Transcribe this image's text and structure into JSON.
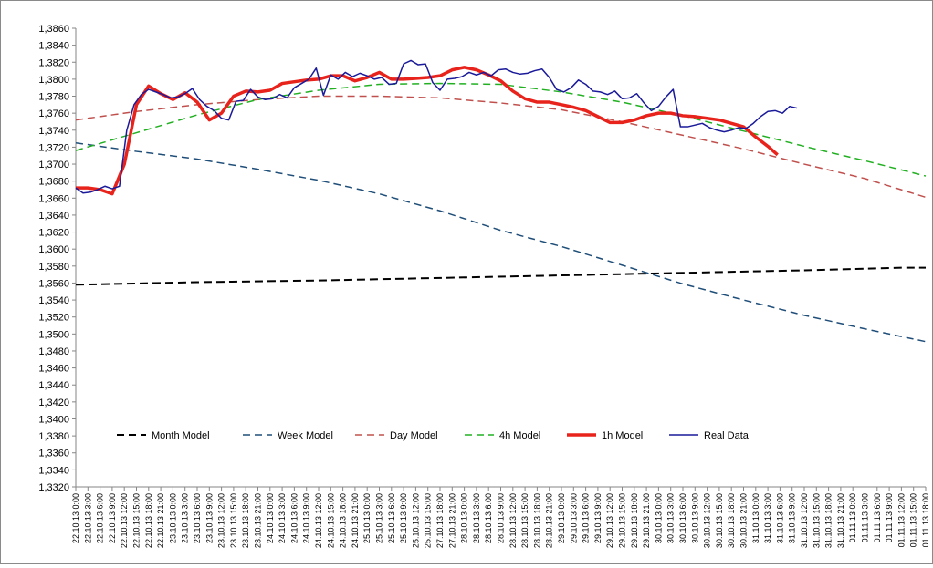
{
  "chart_data": {
    "type": "line",
    "title": "",
    "xlabel": "",
    "ylabel": "",
    "ylim": [
      1.332,
      1.386
    ],
    "y_step": 0.002,
    "y_tick_labels": [
      "1,3320",
      "1,3340",
      "1,3360",
      "1,3380",
      "1,3400",
      "1,3420",
      "1,3440",
      "1,3460",
      "1,3480",
      "1,3500",
      "1,3520",
      "1,3540",
      "1,3560",
      "1,3580",
      "1,3600",
      "1,3620",
      "1,3640",
      "1,3660",
      "1,3680",
      "1,3700",
      "1,3720",
      "1,3740",
      "1,3760",
      "1,3780",
      "1,3800",
      "1,3820",
      "1,3840",
      "1,3860"
    ],
    "x_categories": [
      "22.10.13 0:00",
      "22.10.13 3:00",
      "22.10.13 6:00",
      "22.10.13 9:00",
      "22.10.13 12:00",
      "22.10.13 15:00",
      "22.10.13 18:00",
      "22.10.13 21:00",
      "23.10.13 0:00",
      "23.10.13 3:00",
      "23.10.13 6:00",
      "23.10.13 9:00",
      "23.10.13 12:00",
      "23.10.13 15:00",
      "23.10.13 18:00",
      "23.10.13 21:00",
      "24.10.13 0:00",
      "24.10.13 3:00",
      "24.10.13 6:00",
      "24.10.13 9:00",
      "24.10.13 12:00",
      "24.10.13 15:00",
      "24.10.13 18:00",
      "24.10.13 21:00",
      "25.10.13 0:00",
      "25.10.13 3:00",
      "25.10.13 6:00",
      "25.10.13 9:00",
      "25.10.13 12:00",
      "25.10.13 15:00",
      "27.10.13 18:00",
      "27.10.13 21:00",
      "28.10.13 0:00",
      "28.10.13 3:00",
      "28.10.13 6:00",
      "28.10.13 9:00",
      "28.10.13 12:00",
      "28.10.13 15:00",
      "28.10.13 18:00",
      "28.10.13 21:00",
      "29.10.13 0:00",
      "29.10.13 3:00",
      "29.10.13 6:00",
      "29.10.13 9:00",
      "29.10.13 12:00",
      "29.10.13 15:00",
      "29.10.13 18:00",
      "29.10.13 21:00",
      "30.10.13 0:00",
      "30.10.13 3:00",
      "30.10.13 6:00",
      "30.10.13 9:00",
      "30.10.13 12:00",
      "30.10.13 15:00",
      "30.10.13 18:00",
      "30.10.13 21:00",
      "31.10.13 0:00",
      "31.10.13 3:00",
      "31.10.13 6:00",
      "31.10.13 9:00",
      "31.10.13 12:00",
      "31.10.13 15:00",
      "31.10.13 18:00",
      "31.10.13 21:00",
      "01.11.13 0:00",
      "01.11.13 3:00",
      "01.11.13 6:00",
      "01.11.13 9:00",
      "01.11.13 12:00",
      "01.11.13 15:00",
      "01.11.13 18:00"
    ],
    "series": [
      {
        "name": "Month Model",
        "color": "#000000",
        "style": "dash",
        "width": 2,
        "values": [
          [
            0,
            1.3558
          ],
          [
            10,
            1.3561
          ],
          [
            20,
            1.3563
          ],
          [
            30,
            1.3566
          ],
          [
            40,
            1.3569
          ],
          [
            50,
            1.3572
          ],
          [
            60,
            1.3575
          ],
          [
            68,
            1.3578
          ],
          [
            70,
            1.3578
          ]
        ]
      },
      {
        "name": "Week Model",
        "color": "#1f4e79",
        "style": "dash",
        "width": 1.5,
        "values": [
          [
            0,
            1.3725
          ],
          [
            5,
            1.3715
          ],
          [
            10,
            1.3706
          ],
          [
            15,
            1.3694
          ],
          [
            20,
            1.3681
          ],
          [
            25,
            1.3665
          ],
          [
            30,
            1.3645
          ],
          [
            35,
            1.3622
          ],
          [
            40,
            1.3603
          ],
          [
            45,
            1.3581
          ],
          [
            50,
            1.3559
          ],
          [
            55,
            1.354
          ],
          [
            60,
            1.3522
          ],
          [
            65,
            1.3506
          ],
          [
            70,
            1.3491
          ]
        ]
      },
      {
        "name": "Day Model",
        "color": "#c0504d",
        "style": "dash",
        "width": 1.5,
        "values": [
          [
            0,
            1.3752
          ],
          [
            5,
            1.3762
          ],
          [
            10,
            1.377
          ],
          [
            15,
            1.3776
          ],
          [
            20,
            1.378
          ],
          [
            25,
            1.378
          ],
          [
            30,
            1.3778
          ],
          [
            35,
            1.3772
          ],
          [
            40,
            1.3764
          ],
          [
            45,
            1.375
          ],
          [
            50,
            1.3734
          ],
          [
            55,
            1.3718
          ],
          [
            60,
            1.37
          ],
          [
            65,
            1.3683
          ],
          [
            70,
            1.3661
          ]
        ]
      },
      {
        "name": "4h Model",
        "color": "#22b022",
        "style": "dash",
        "width": 1.5,
        "values": [
          [
            0,
            1.3716
          ],
          [
            5,
            1.3737
          ],
          [
            10,
            1.3758
          ],
          [
            15,
            1.3776
          ],
          [
            20,
            1.3787
          ],
          [
            25,
            1.3794
          ],
          [
            30,
            1.3795
          ],
          [
            35,
            1.3794
          ],
          [
            40,
            1.3785
          ],
          [
            45,
            1.3773
          ],
          [
            50,
            1.3757
          ],
          [
            55,
            1.3739
          ],
          [
            60,
            1.3721
          ],
          [
            65,
            1.3704
          ],
          [
            70,
            1.3686
          ]
        ]
      },
      {
        "name": "1h Model",
        "color": "#e8231c",
        "style": "solid",
        "width": 3.5,
        "values": [
          [
            0,
            1.3672
          ],
          [
            1,
            1.3672
          ],
          [
            2,
            1.367
          ],
          [
            3,
            1.3665
          ],
          [
            4,
            1.37
          ],
          [
            5,
            1.377
          ],
          [
            6,
            1.3792
          ],
          [
            7,
            1.3783
          ],
          [
            8,
            1.3776
          ],
          [
            9,
            1.3784
          ],
          [
            10,
            1.3773
          ],
          [
            11,
            1.3752
          ],
          [
            12,
            1.376
          ],
          [
            13,
            1.378
          ],
          [
            14,
            1.3786
          ],
          [
            15,
            1.3785
          ],
          [
            16,
            1.3787
          ],
          [
            17,
            1.3795
          ],
          [
            18,
            1.3797
          ],
          [
            19,
            1.3799
          ],
          [
            20,
            1.38
          ],
          [
            21,
            1.3804
          ],
          [
            22,
            1.3804
          ],
          [
            23,
            1.3798
          ],
          [
            24,
            1.3802
          ],
          [
            25,
            1.3808
          ],
          [
            26,
            1.38
          ],
          [
            27,
            1.38
          ],
          [
            28,
            1.3801
          ],
          [
            29,
            1.3802
          ],
          [
            30,
            1.3804
          ],
          [
            31,
            1.3811
          ],
          [
            32,
            1.3814
          ],
          [
            33,
            1.3811
          ],
          [
            34,
            1.3805
          ],
          [
            35,
            1.3798
          ],
          [
            36,
            1.3786
          ],
          [
            37,
            1.3777
          ],
          [
            38,
            1.3773
          ],
          [
            39,
            1.3773
          ],
          [
            40,
            1.377
          ],
          [
            41,
            1.3767
          ],
          [
            42,
            1.3763
          ],
          [
            43,
            1.3756
          ],
          [
            44,
            1.3749
          ],
          [
            45,
            1.3749
          ],
          [
            46,
            1.3752
          ],
          [
            47,
            1.3757
          ],
          [
            48,
            1.376
          ],
          [
            49,
            1.376
          ],
          [
            50,
            1.3757
          ],
          [
            51,
            1.3756
          ],
          [
            52,
            1.3754
          ],
          [
            53,
            1.3752
          ],
          [
            54,
            1.3748
          ],
          [
            55,
            1.3744
          ],
          [
            56,
            1.3732
          ],
          [
            57,
            1.3721
          ],
          [
            57.8,
            1.3711
          ]
        ]
      },
      {
        "name": "Real Data",
        "color": "#1a1a9a",
        "style": "solid",
        "width": 1.5,
        "values": [
          [
            0,
            1.3672
          ],
          [
            0.6,
            1.3666
          ],
          [
            1.2,
            1.3667
          ],
          [
            1.8,
            1.367
          ],
          [
            2.4,
            1.3674
          ],
          [
            3,
            1.3671
          ],
          [
            3.6,
            1.3674
          ],
          [
            4.2,
            1.374
          ],
          [
            4.8,
            1.377
          ],
          [
            5.4,
            1.3782
          ],
          [
            6,
            1.3788
          ],
          [
            6.6,
            1.3785
          ],
          [
            7.2,
            1.3782
          ],
          [
            7.8,
            1.3778
          ],
          [
            8.4,
            1.3779
          ],
          [
            9,
            1.3783
          ],
          [
            9.6,
            1.3789
          ],
          [
            10.2,
            1.3776
          ],
          [
            10.8,
            1.3768
          ],
          [
            11.4,
            1.3763
          ],
          [
            12,
            1.3754
          ],
          [
            12.6,
            1.3752
          ],
          [
            13.2,
            1.3774
          ],
          [
            13.8,
            1.3775
          ],
          [
            14.4,
            1.3788
          ],
          [
            15,
            1.3779
          ],
          [
            15.6,
            1.3776
          ],
          [
            16.2,
            1.3777
          ],
          [
            16.8,
            1.3782
          ],
          [
            17.4,
            1.3778
          ],
          [
            18,
            1.379
          ],
          [
            18.6,
            1.3795
          ],
          [
            19.2,
            1.38
          ],
          [
            19.8,
            1.3813
          ],
          [
            20.4,
            1.3781
          ],
          [
            21,
            1.3805
          ],
          [
            21.6,
            1.38
          ],
          [
            22.2,
            1.3808
          ],
          [
            22.8,
            1.3803
          ],
          [
            23.4,
            1.3807
          ],
          [
            24,
            1.3804
          ],
          [
            24.6,
            1.38
          ],
          [
            25.2,
            1.3802
          ],
          [
            25.8,
            1.3794
          ],
          [
            26.4,
            1.3795
          ],
          [
            27,
            1.3818
          ],
          [
            27.6,
            1.3822
          ],
          [
            28.2,
            1.3817
          ],
          [
            28.8,
            1.3818
          ],
          [
            29.4,
            1.3796
          ],
          [
            30,
            1.3787
          ],
          [
            30.6,
            1.38
          ],
          [
            31.2,
            1.3801
          ],
          [
            31.8,
            1.3803
          ],
          [
            32.4,
            1.3808
          ],
          [
            33,
            1.3805
          ],
          [
            33.6,
            1.3808
          ],
          [
            34.2,
            1.3804
          ],
          [
            34.8,
            1.3811
          ],
          [
            35.4,
            1.3812
          ],
          [
            36,
            1.3808
          ],
          [
            36.6,
            1.3806
          ],
          [
            37.2,
            1.3807
          ],
          [
            37.8,
            1.381
          ],
          [
            38.4,
            1.3812
          ],
          [
            39,
            1.3802
          ],
          [
            39.6,
            1.3788
          ],
          [
            40.2,
            1.3785
          ],
          [
            40.8,
            1.379
          ],
          [
            41.4,
            1.3799
          ],
          [
            42,
            1.3794
          ],
          [
            42.6,
            1.3786
          ],
          [
            43.2,
            1.3785
          ],
          [
            43.8,
            1.3782
          ],
          [
            44.4,
            1.3786
          ],
          [
            45,
            1.3777
          ],
          [
            45.6,
            1.3778
          ],
          [
            46.2,
            1.3783
          ],
          [
            46.8,
            1.3772
          ],
          [
            47.4,
            1.3763
          ],
          [
            48,
            1.3768
          ],
          [
            48.6,
            1.3779
          ],
          [
            49.2,
            1.3788
          ],
          [
            49.8,
            1.3744
          ],
          [
            50.4,
            1.3744
          ],
          [
            51,
            1.3746
          ],
          [
            51.6,
            1.3748
          ],
          [
            52.2,
            1.3743
          ],
          [
            52.8,
            1.374
          ],
          [
            53.4,
            1.3738
          ],
          [
            54,
            1.374
          ],
          [
            54.6,
            1.3743
          ],
          [
            55.2,
            1.3742
          ],
          [
            55.8,
            1.3748
          ],
          [
            56.4,
            1.3756
          ],
          [
            57,
            1.3762
          ],
          [
            57.6,
            1.3763
          ],
          [
            58.2,
            1.376
          ],
          [
            58.8,
            1.3768
          ],
          [
            59.4,
            1.3766
          ]
        ]
      }
    ],
    "legend": {
      "position": "inside-bottom",
      "order": [
        "Month Model",
        "Week Model",
        "Day Model",
        "4h Model",
        "1h Model",
        "Real Data"
      ]
    },
    "grid": false
  }
}
